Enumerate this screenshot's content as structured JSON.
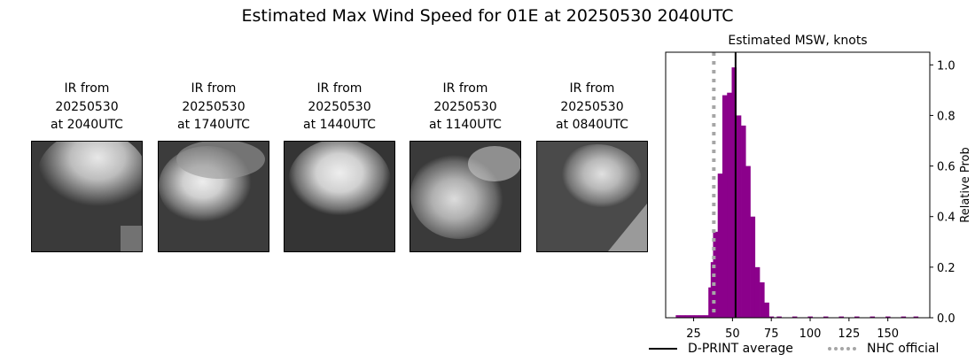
{
  "title": "Estimated Max Wind Speed for 01E at 20250530 2040UTC",
  "panels": [
    {
      "caption": "IR from\n20250530\nat 2040UTC"
    },
    {
      "caption": "IR from\n20250530\nat 1740UTC"
    },
    {
      "caption": "IR from\n20250530\nat 1440UTC"
    },
    {
      "caption": "IR from\n20250530\nat 1140UTC"
    },
    {
      "caption": "IR from\n20250530\nat 0840UTC"
    }
  ],
  "chart_data": {
    "type": "bar",
    "title": "Estimated MSW, knots",
    "xlabel": "",
    "ylabel": "Relative Prob",
    "xlim": [
      7,
      177
    ],
    "ylim": [
      0,
      1.05
    ],
    "xticks": [
      25,
      50,
      75,
      100,
      125,
      150
    ],
    "yticks": [
      0.0,
      0.2,
      0.4,
      0.6,
      0.8,
      1.0
    ],
    "y_axis_side": "right",
    "grid": false,
    "bar_color": "#8b008b",
    "bin_width": 3,
    "bins": [
      {
        "x": 15,
        "value": 0.01
      },
      {
        "x": 18,
        "value": 0.01
      },
      {
        "x": 21,
        "value": 0.01
      },
      {
        "x": 24,
        "value": 0.01
      },
      {
        "x": 27,
        "value": 0.01
      },
      {
        "x": 30,
        "value": 0.01
      },
      {
        "x": 33,
        "value": 0.01
      },
      {
        "x": 36,
        "value": 0.12
      },
      {
        "x": 37.5,
        "value": 0.22
      },
      {
        "x": 39,
        "value": 0.34
      },
      {
        "x": 42,
        "value": 0.57
      },
      {
        "x": 45,
        "value": 0.88
      },
      {
        "x": 48,
        "value": 0.89
      },
      {
        "x": 51,
        "value": 0.99
      },
      {
        "x": 54,
        "value": 0.8
      },
      {
        "x": 57,
        "value": 0.76
      },
      {
        "x": 60,
        "value": 0.6
      },
      {
        "x": 63,
        "value": 0.4
      },
      {
        "x": 66,
        "value": 0.2
      },
      {
        "x": 69,
        "value": 0.14
      },
      {
        "x": 72,
        "value": 0.06
      },
      {
        "x": 75,
        "value": 0.005
      },
      {
        "x": 80,
        "value": 0.005
      },
      {
        "x": 90,
        "value": 0.005
      },
      {
        "x": 100,
        "value": 0.005
      },
      {
        "x": 110,
        "value": 0.005
      },
      {
        "x": 120,
        "value": 0.005
      },
      {
        "x": 130,
        "value": 0.005
      },
      {
        "x": 140,
        "value": 0.005
      },
      {
        "x": 150,
        "value": 0.005
      },
      {
        "x": 160,
        "value": 0.005
      },
      {
        "x": 168,
        "value": 0.005
      }
    ],
    "dprint_average": 52,
    "nhc_official": 38,
    "legend": {
      "placement": "bottom",
      "entries": [
        {
          "label": "D-PRINT average",
          "style": "solid",
          "color": "#000000"
        },
        {
          "label": "NHC official",
          "style": "dotted",
          "color": "#a6a6a6"
        }
      ]
    }
  }
}
